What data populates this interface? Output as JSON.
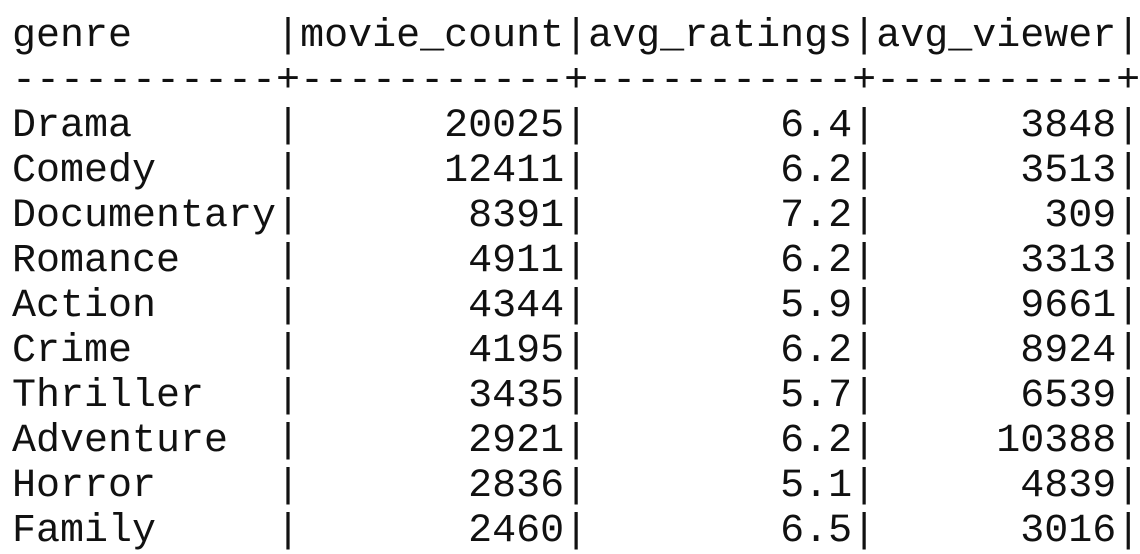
{
  "table": {
    "columns": [
      {
        "name": "genre",
        "width": 11,
        "align": "left"
      },
      {
        "name": "movie_count",
        "width": 11,
        "align": "right"
      },
      {
        "name": "avg_ratings",
        "width": 11,
        "align": "right"
      },
      {
        "name": "avg_viewer",
        "width": 10,
        "align": "right"
      }
    ],
    "rows": [
      [
        "Drama",
        "20025",
        "6.4",
        "3848"
      ],
      [
        "Comedy",
        "12411",
        "6.2",
        "3513"
      ],
      [
        "Documentary",
        "8391",
        "7.2",
        "309"
      ],
      [
        "Romance",
        "4911",
        "6.2",
        "3313"
      ],
      [
        "Action",
        "4344",
        "5.9",
        "9661"
      ],
      [
        "Crime",
        "4195",
        "6.2",
        "8924"
      ],
      [
        "Thriller",
        "3435",
        "5.7",
        "6539"
      ],
      [
        "Adventure",
        "2921",
        "6.2",
        "10388"
      ],
      [
        "Horror",
        "2836",
        "5.1",
        "4839"
      ],
      [
        "Family",
        "2460",
        "6.5",
        "3016"
      ]
    ]
  }
}
